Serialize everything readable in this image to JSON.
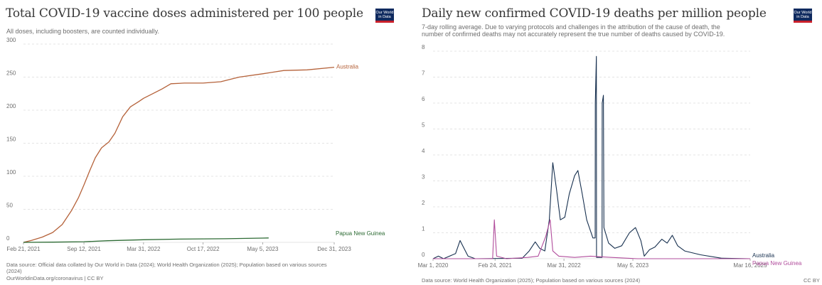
{
  "left": {
    "title": "Total COVID-19 vaccine doses administered per 100 people",
    "subtitle": "All doses, including boosters, are counted individually.",
    "logo": [
      "Our World",
      "in Data"
    ],
    "source_line1": "Data source: Official data collated by Our World in Data (2024); World Health Organization (2025); Population based on various sources",
    "source_line2": "(2024)",
    "source_line3": "OurWorldinData.org/coronavirus | CC BY"
  },
  "right": {
    "title": "Daily new confirmed COVID-19 deaths per million people",
    "subtitle_line1": "7-day rolling average. Due to varying protocols and challenges in the attribution of the cause of death, the",
    "subtitle_line2": "number of confirmed deaths may not accurately represent the true number of deaths caused by COVID-19.",
    "logo": [
      "Our World",
      "in Data"
    ],
    "source": "Data source: World Health Organization (2025); Population based on various sources (2024)",
    "license": "CC BY"
  },
  "colors": {
    "australia_left": "#b5623a",
    "png_left": "#2d6b34",
    "australia_right": "#17304f",
    "png_right": "#b14d9c",
    "grid": "#dcdcdc"
  },
  "chart_data": [
    {
      "type": "line",
      "title": "Total COVID-19 vaccine doses administered per 100 people",
      "subtitle": "All doses, including boosters, are counted individually.",
      "xlim": [
        "2021-02-21",
        "2023-12-31"
      ],
      "ylim": [
        0,
        300
      ],
      "y_ticks": [
        0,
        50,
        100,
        150,
        200,
        250,
        300
      ],
      "x_ticks": [
        "2021-02-21",
        "2021-09-12",
        "2022-03-31",
        "2022-10-17",
        "2023-05-05",
        "2023-12-31"
      ],
      "x_tick_labels": [
        "Feb 21, 2021",
        "Sep 12, 2021",
        "Mar 31, 2022",
        "Oct 17, 2022",
        "May 5, 2023",
        "Dec 31, 2023"
      ],
      "grid": true,
      "series": [
        {
          "name": "Australia",
          "points": [
            [
              "2021-02-21",
              0
            ],
            [
              "2021-03-20",
              3
            ],
            [
              "2021-04-25",
              8
            ],
            [
              "2021-05-30",
              15
            ],
            [
              "2021-07-01",
              27
            ],
            [
              "2021-08-01",
              48
            ],
            [
              "2021-08-25",
              68
            ],
            [
              "2021-09-12",
              87
            ],
            [
              "2021-10-01",
              108
            ],
            [
              "2021-10-20",
              128
            ],
            [
              "2021-11-10",
              143
            ],
            [
              "2021-12-05",
              152
            ],
            [
              "2021-12-25",
              165
            ],
            [
              "2022-01-20",
              190
            ],
            [
              "2022-02-15",
              205
            ],
            [
              "2022-03-15",
              213
            ],
            [
              "2022-03-31",
              218
            ],
            [
              "2022-05-01",
              225
            ],
            [
              "2022-06-01",
              232
            ],
            [
              "2022-07-01",
              240
            ],
            [
              "2022-08-15",
              241
            ],
            [
              "2022-10-17",
              241
            ],
            [
              "2022-12-15",
              243
            ],
            [
              "2023-02-15",
              250
            ],
            [
              "2023-05-05",
              255
            ],
            [
              "2023-07-15",
              260
            ],
            [
              "2023-10-01",
              261
            ],
            [
              "2023-12-31",
              265
            ]
          ]
        },
        {
          "name": "Papua New Guinea",
          "points": [
            [
              "2021-02-21",
              0
            ],
            [
              "2021-06-01",
              0.3
            ],
            [
              "2021-09-12",
              1
            ],
            [
              "2021-12-01",
              2.5
            ],
            [
              "2022-03-31",
              4
            ],
            [
              "2022-08-01",
              5
            ],
            [
              "2022-12-31",
              5.5
            ],
            [
              "2023-05-05",
              6.5
            ],
            [
              "2023-05-25",
              6.7
            ]
          ]
        }
      ]
    },
    {
      "type": "line",
      "title": "Daily new confirmed COVID-19 deaths per million people",
      "subtitle": "7-day rolling average. Due to varying protocols and challenges in the attribution of the cause of death, the number of confirmed deaths may not accurately represent the true number of deaths caused by COVID-19.",
      "xlim": [
        "2020-03-01",
        "2025-03-16"
      ],
      "ylim": [
        0,
        8
      ],
      "y_ticks": [
        0,
        1,
        2,
        3,
        4,
        5,
        6,
        7,
        8
      ],
      "x_ticks": [
        "2020-03-01",
        "2021-02-24",
        "2022-03-31",
        "2023-05-05",
        "2025-03-16"
      ],
      "x_tick_labels": [
        "Mar 1, 2020",
        "Feb 24, 2021",
        "Mar 31, 2022",
        "May 5, 2023",
        "Mar 16, 2025"
      ],
      "grid": true,
      "series": [
        {
          "name": "Australia",
          "points": [
            [
              "2020-03-01",
              0
            ],
            [
              "2020-04-01",
              0.1
            ],
            [
              "2020-05-01",
              0
            ],
            [
              "2020-07-10",
              0.2
            ],
            [
              "2020-08-05",
              0.7
            ],
            [
              "2020-08-20",
              0.5
            ],
            [
              "2020-09-20",
              0.1
            ],
            [
              "2020-11-01",
              0
            ],
            [
              "2021-08-01",
              0.02
            ],
            [
              "2021-09-10",
              0.3
            ],
            [
              "2021-10-15",
              0.65
            ],
            [
              "2021-11-10",
              0.4
            ],
            [
              "2021-12-10",
              0.3
            ],
            [
              "2022-01-05",
              1.5
            ],
            [
              "2022-01-25",
              3.7
            ],
            [
              "2022-02-15",
              2.7
            ],
            [
              "2022-03-10",
              1.5
            ],
            [
              "2022-04-05",
              1.6
            ],
            [
              "2022-05-01",
              2.5
            ],
            [
              "2022-06-01",
              3.2
            ],
            [
              "2022-06-20",
              3.4
            ],
            [
              "2022-07-15",
              2.5
            ],
            [
              "2022-08-10",
              1.5
            ],
            [
              "2022-09-15",
              0.8
            ],
            [
              "2022-09-28",
              0.8
            ],
            [
              "2022-09-29",
              6.0
            ],
            [
              "2022-10-05",
              7.8
            ],
            [
              "2022-10-06",
              0.05
            ],
            [
              "2022-11-07",
              0.05
            ],
            [
              "2022-11-08",
              6.0
            ],
            [
              "2022-11-15",
              6.3
            ],
            [
              "2022-11-18",
              1.2
            ],
            [
              "2022-12-15",
              0.6
            ],
            [
              "2023-01-20",
              0.4
            ],
            [
              "2023-03-01",
              0.5
            ],
            [
              "2023-04-15",
              1.0
            ],
            [
              "2023-05-20",
              1.2
            ],
            [
              "2023-06-20",
              0.7
            ],
            [
              "2023-07-10",
              0.1
            ],
            [
              "2023-08-10",
              0.35
            ],
            [
              "2023-09-10",
              0.45
            ],
            [
              "2023-10-20",
              0.75
            ],
            [
              "2023-11-20",
              0.6
            ],
            [
              "2023-12-20",
              0.9
            ],
            [
              "2024-01-20",
              0.5
            ],
            [
              "2024-03-01",
              0.3
            ],
            [
              "2024-06-01",
              0.15
            ],
            [
              "2024-10-01",
              0.02
            ],
            [
              "2025-03-16",
              0
            ]
          ]
        },
        {
          "name": "Papua New Guinea",
          "points": [
            [
              "2020-03-01",
              0
            ],
            [
              "2021-02-10",
              0
            ],
            [
              "2021-02-20",
              1.5
            ],
            [
              "2021-03-05",
              0.1
            ],
            [
              "2021-05-01",
              0
            ],
            [
              "2021-09-01",
              0.05
            ],
            [
              "2021-11-01",
              0.1
            ],
            [
              "2021-12-15",
              0.85
            ],
            [
              "2022-01-10",
              1.5
            ],
            [
              "2022-01-25",
              0.3
            ],
            [
              "2022-03-01",
              0.1
            ],
            [
              "2022-06-01",
              0.05
            ],
            [
              "2022-09-01",
              0.1
            ],
            [
              "2023-01-01",
              0.05
            ],
            [
              "2023-06-01",
              0
            ],
            [
              "2025-03-16",
              0
            ]
          ]
        }
      ]
    }
  ]
}
